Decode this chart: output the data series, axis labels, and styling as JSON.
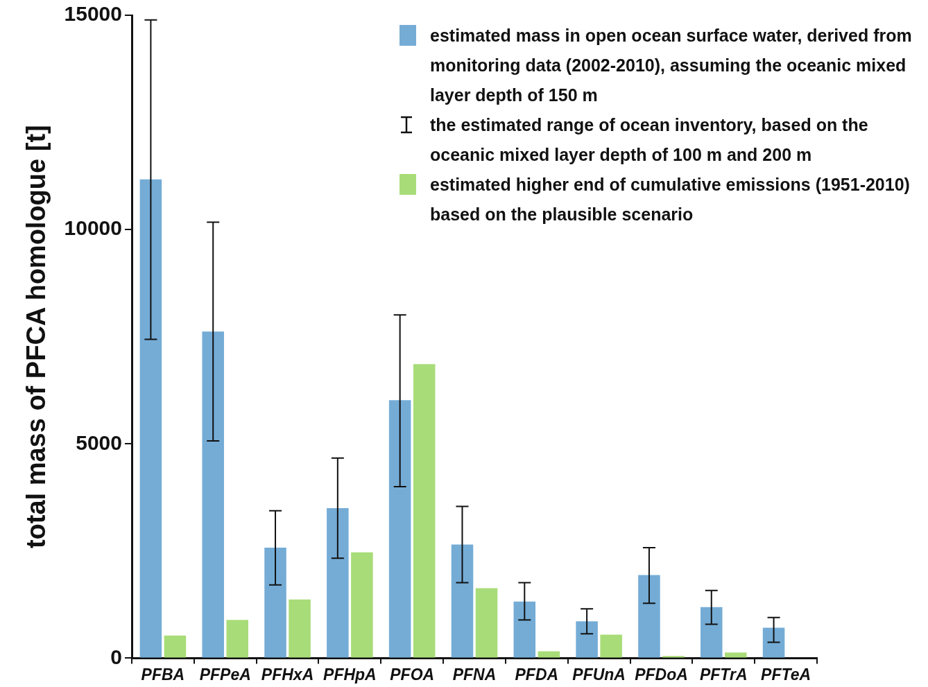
{
  "chart_data": {
    "type": "bar",
    "ylabel": "total mass of PFCA homologue [t]",
    "categories": [
      "PFBA",
      "PFPeA",
      "PFHxA",
      "PFHpA",
      "PFOA",
      "PFNA",
      "PFDA",
      "PFUnA",
      "PFDoA",
      "PFTrA",
      "PFTeA"
    ],
    "series": [
      {
        "name": "estimated mass in open ocean surface water, derived from monitoring data (2002-2010), assuming the oceanic mixed layer depth of 150 m",
        "color": "#74acd6",
        "values": [
          11170,
          7620,
          2580,
          3500,
          6020,
          2650,
          1320,
          860,
          1940,
          1190,
          710
        ],
        "errors": [
          [
            7440,
            14890
          ],
          [
            5070,
            10170
          ],
          [
            1710,
            3440
          ],
          [
            2330,
            4670
          ],
          [
            4000,
            8010
          ],
          [
            1760,
            3540
          ],
          [
            890,
            1760
          ],
          [
            570,
            1150
          ],
          [
            1280,
            2580
          ],
          [
            790,
            1580
          ],
          [
            370,
            950
          ]
        ]
      },
      {
        "name": "estimated higher end of cumulative emissions (1951-2010) based on the plausible scenario",
        "color": "#a8dc78",
        "values": [
          530,
          890,
          1370,
          2470,
          6860,
          1630,
          160,
          550,
          50,
          130,
          null
        ]
      }
    ],
    "annotations": [
      "the estimated range of ocean inventory, based on the oceanic mixed layer depth of 100 m and 200 m"
    ],
    "ylim": [
      0,
      15000
    ],
    "yticks": [
      0,
      5000,
      10000,
      15000
    ],
    "grid": false,
    "legend": "top right"
  }
}
